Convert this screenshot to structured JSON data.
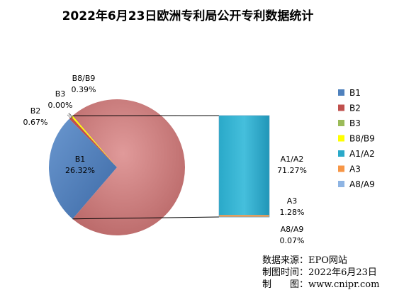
{
  "chart_data": {
    "type": "pie",
    "subtype": "bar-of-pie",
    "title": "2022年6月23日欧洲专利局公开专利数据统计",
    "legend_position": "right",
    "series": [
      {
        "name": "B1",
        "value": 26.32,
        "label": "26.32%",
        "color": "#4f81bd",
        "group": "pie"
      },
      {
        "name": "B2",
        "value": 0.67,
        "label": "0.67%",
        "color": "#c0504d",
        "group": "pie"
      },
      {
        "name": "B3",
        "value": 0.0,
        "label": "0.00%",
        "color": "#9bbb59",
        "group": "pie"
      },
      {
        "name": "B8/B9",
        "value": 0.39,
        "label": "0.39%",
        "color": "#ffff00",
        "group": "pie"
      },
      {
        "name": "A1/A2",
        "value": 71.27,
        "label": "71.27%",
        "color": "#2aa9c9",
        "group": "bar"
      },
      {
        "name": "A3",
        "value": 1.28,
        "label": "1.28%",
        "color": "#f79646",
        "group": "bar"
      },
      {
        "name": "A8/A9",
        "value": 0.07,
        "label": "0.07%",
        "color": "#8eb4e3",
        "group": "bar"
      }
    ],
    "other_slice_color": "#d08080"
  },
  "source": {
    "line1": "数据来源：EPO网站",
    "line2": "制图时间：2022年6月23日",
    "line3": "制　　图：www.cnipr.com"
  }
}
